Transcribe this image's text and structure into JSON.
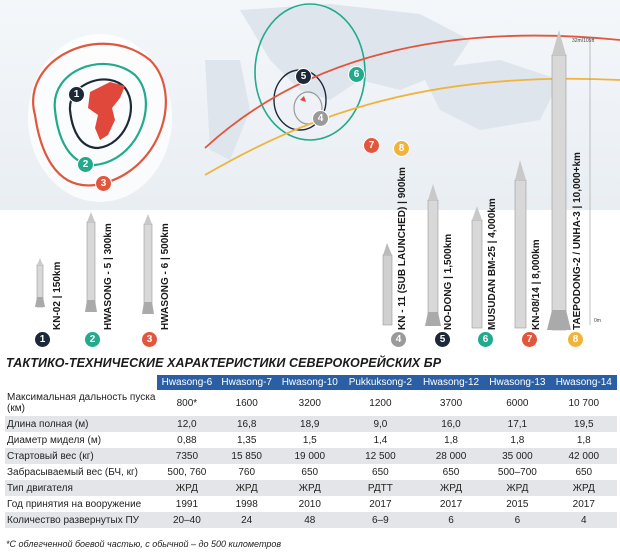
{
  "map": {
    "badges": [
      {
        "num": "1",
        "color": "#1d2838"
      },
      {
        "num": "2",
        "color": "#23a98c"
      },
      {
        "num": "3",
        "color": "#e0573e"
      },
      {
        "num": "4",
        "color": "#9a9a9a"
      },
      {
        "num": "5",
        "color": "#1d2838"
      },
      {
        "num": "6",
        "color": "#23a98c"
      },
      {
        "num": "7",
        "color": "#e0573e"
      },
      {
        "num": "8",
        "color": "#f0b43c"
      }
    ],
    "range_colors": {
      "r1": "#1d2838",
      "r2": "#23a98c",
      "r3": "#e0573e",
      "r4": "#9a9a9a",
      "r8": "#f0b43c"
    }
  },
  "missiles": [
    {
      "label": "KN-02 | 150km",
      "badge": "1"
    },
    {
      "label": "HWASONG - 5 | 300km",
      "badge": "2"
    },
    {
      "label": "HWASONG - 6 | 500km",
      "badge": "3"
    },
    {
      "label": "KN - 11 (SUB LAUNCHED) | 900km",
      "badge": "4"
    },
    {
      "label": "NO-DONG | 1,500km",
      "badge": "5"
    },
    {
      "label": "MUSUDAN BM-25 | 4,000km",
      "badge": "6"
    },
    {
      "label": "KN-08/14 | 8,000km",
      "badge": "7"
    },
    {
      "label": "TAEPODONG-2 / UNHA-3 | 10,000+km",
      "badge": "8"
    }
  ],
  "scale": {
    "top": "32m/105ft",
    "bottom": "0m"
  },
  "title": "ТАКТИКО-ТЕХНИЧЕСКИЕ ХАРАКТЕРИСТИКИ СЕВЕРОКОРЕЙСКИХ БР",
  "table": {
    "columns": [
      "Hwasong-6",
      "Hwasong-7",
      "Hwasong-10",
      "Pukkuksong-2",
      "Hwasong-12",
      "Hwasong-13",
      "Hwasong-14"
    ],
    "rows": [
      {
        "label": "Максимальная дальность пуска (км)",
        "values": [
          "800*",
          "1600",
          "3200",
          "1200",
          "3700",
          "6000",
          "10 700"
        ]
      },
      {
        "label": "Длина полная (м)",
        "values": [
          "12,0",
          "16,8",
          "18,9",
          "9,0",
          "16,0",
          "17,1",
          "19,5"
        ]
      },
      {
        "label": "Диаметр миделя (м)",
        "values": [
          "0,88",
          "1,35",
          "1,5",
          "1,4",
          "1,8",
          "1,8",
          "1,8"
        ]
      },
      {
        "label": "Стартовый вес (кг)",
        "values": [
          "7350",
          "15 850",
          "19 000",
          "12 500",
          "28 000",
          "35 000",
          "42 000"
        ]
      },
      {
        "label": "Забрасываемый вес (БЧ, кг)",
        "values": [
          "500, 760",
          "760",
          "650",
          "650",
          "650",
          "500–700",
          "650"
        ]
      },
      {
        "label": "Тип двигателя",
        "values": [
          "ЖРД",
          "ЖРД",
          "ЖРД",
          "РДТТ",
          "ЖРД",
          "ЖРД",
          "ЖРД"
        ]
      },
      {
        "label": "Год принятия на вооружение",
        "values": [
          "1991",
          "1998",
          "2010",
          "2017",
          "2017",
          "2015",
          "2017"
        ]
      },
      {
        "label": "Количество развернутых ПУ",
        "values": [
          "20–40",
          "24",
          "48",
          "6–9",
          "6",
          "6",
          "4"
        ]
      }
    ]
  },
  "footnote": "*С облегченной боевой частью, с обычной – до 500 километров"
}
